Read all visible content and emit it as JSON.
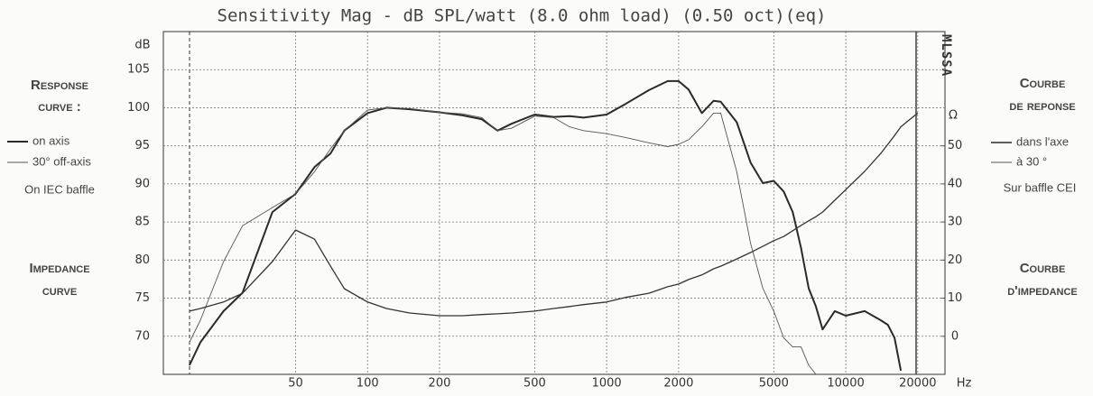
{
  "chart_data": {
    "type": "line",
    "title": "Sensitivity Mag - dB SPL/watt (8.0 ohm load) (0.50 oct)(eq)",
    "y_label": "dB",
    "y2_label": "Ω",
    "x_label": "Hz",
    "side_label": "MLSSA",
    "log_x": true,
    "grid": true,
    "xlim": [
      14,
      26000
    ],
    "xticks": [
      50,
      100,
      200,
      500,
      1000,
      2000,
      5000,
      10000,
      20000
    ],
    "ylim": [
      65,
      110
    ],
    "yticks": [
      70,
      75,
      80,
      85,
      90,
      95,
      100,
      105
    ],
    "y2lim": [
      -10,
      80
    ],
    "y2ticks": [
      0,
      10,
      20,
      30,
      40,
      50
    ],
    "x": [
      18,
      20,
      25,
      30,
      40,
      50,
      60,
      70,
      80,
      100,
      120,
      150,
      200,
      250,
      300,
      350,
      400,
      500,
      600,
      700,
      800,
      1000,
      1200,
      1500,
      1800,
      2000,
      2200,
      2500,
      2800,
      3000,
      3500,
      4000,
      4500,
      5000,
      5500,
      6000,
      6500,
      7000,
      7500,
      8000,
      9000,
      10000,
      12000,
      14000,
      15000,
      16000,
      17000,
      18000,
      20000
    ],
    "series": [
      {
        "name": "on axis",
        "color": "#2a2a2a",
        "values": [
          66.2,
          69.2,
          73.3,
          75.7,
          86.3,
          88.7,
          92.2,
          94,
          97,
          99.3,
          100,
          99.8,
          99.4,
          99,
          98.5,
          97,
          97.9,
          99.1,
          98.8,
          98.9,
          98.7,
          99.1,
          100.5,
          102.3,
          103.5,
          103.5,
          102.4,
          99.3,
          100.9,
          100.8,
          98.1,
          92.8,
          90.1,
          90.4,
          89,
          86.3,
          81.6,
          76.3,
          73.9,
          70.9,
          73.3,
          72.7,
          73.3,
          72.1,
          71.5,
          69.8,
          65.5,
          null,
          null
        ]
      },
      {
        "name": "30° off-axis",
        "color": "#555555",
        "values": [
          69.2,
          72.1,
          79.8,
          84.5,
          86.9,
          88.7,
          91.6,
          94.6,
          97,
          99.7,
          100,
          99.9,
          99.4,
          99.2,
          98.7,
          97,
          97.3,
          98.9,
          98.7,
          97.5,
          97,
          96.6,
          96.1,
          95.4,
          94.9,
          95.2,
          95.8,
          97.5,
          99.3,
          99.3,
          91.6,
          82.2,
          76.3,
          73.3,
          69.8,
          68.6,
          68.6,
          66.2,
          65,
          null,
          null,
          null,
          null,
          null,
          null,
          null,
          null,
          null,
          null
        ]
      },
      {
        "axis": "y2",
        "color": "#333333",
        "values": [
          6.6,
          7.3,
          9,
          11.3,
          19.6,
          27.9,
          25.5,
          18.4,
          12.5,
          9,
          7.3,
          6.1,
          5.4,
          5.4,
          5.7,
          5.9,
          6.1,
          6.6,
          7.3,
          7.8,
          8.3,
          9,
          10.2,
          11.3,
          13,
          13.7,
          14.9,
          16.1,
          17.7,
          18.4,
          20.3,
          22,
          23.6,
          25.1,
          26.2,
          27.7,
          29.1,
          30.3,
          31.4,
          32.6,
          35.7,
          38.5,
          43.3,
          48,
          50.4,
          52.7,
          55,
          56.3,
          58.6
        ]
      }
    ],
    "annotations_left": {
      "response": [
        "Response",
        "curve :"
      ],
      "baffle": "On IEC baffle",
      "impedance": [
        "Impedance",
        "curve"
      ]
    },
    "annotations_right": {
      "response": [
        "Courbe",
        "de reponse"
      ],
      "legend": [
        "dans l'axe",
        "à 30 °"
      ],
      "baffle": "Sur baffle CEI",
      "impedance": [
        "Courbe",
        "d'impedance"
      ]
    }
  }
}
